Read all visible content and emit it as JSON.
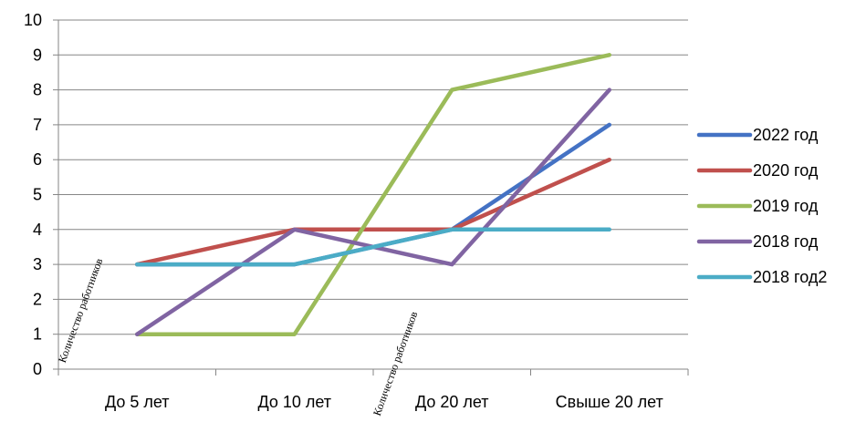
{
  "chart_data": {
    "type": "line",
    "title": "",
    "xlabel": "",
    "ylabel": "",
    "categories": [
      "До 5 лет",
      "До 10 лет",
      "До 20 лет",
      "Свыше 20 лет"
    ],
    "ylim": [
      0,
      10
    ],
    "yticks": [
      0,
      1,
      2,
      3,
      4,
      5,
      6,
      7,
      8,
      9,
      10
    ],
    "grid": true,
    "legend_position": "right",
    "series": [
      {
        "name": "2022 год",
        "color": "#4472C4",
        "values": [
          3,
          3,
          4,
          7
        ]
      },
      {
        "name": "2020 год",
        "color": "#C0504D",
        "values": [
          3,
          4,
          4,
          6
        ]
      },
      {
        "name": "2019 год",
        "color": "#9BBB59",
        "values": [
          1,
          1,
          8,
          9
        ]
      },
      {
        "name": "2018 год",
        "color": "#8064A2",
        "values": [
          1,
          4,
          3,
          8
        ]
      },
      {
        "name": "2018 год2",
        "color": "#4BACC6",
        "values": [
          3,
          3,
          4,
          4
        ]
      }
    ],
    "annotations": [
      {
        "text": "Количество работников",
        "category": 0,
        "value": 1
      },
      {
        "text": "Количество работников",
        "category": 2,
        "value": 0
      }
    ]
  }
}
